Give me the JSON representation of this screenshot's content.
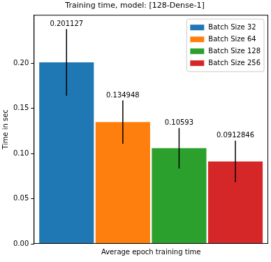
{
  "chart_data": {
    "type": "bar",
    "title": "Training time, model: [128-Dense-1]",
    "categories": [
      "Average epoch training time"
    ],
    "ylabel": "Time in sec",
    "series": [
      {
        "name": "Batch Size 32",
        "color": "#1f77b4",
        "values": [
          0.201127
        ],
        "errors": [
          0.037
        ]
      },
      {
        "name": "Batch Size 64",
        "color": "#ff7f0e",
        "values": [
          0.134948
        ],
        "errors": [
          0.024
        ]
      },
      {
        "name": "Batch Size 128",
        "color": "#2ca02c",
        "values": [
          0.10593
        ],
        "errors": [
          0.0225
        ]
      },
      {
        "name": "Batch Size 256",
        "color": "#d62728",
        "values": [
          0.0912846
        ],
        "errors": [
          0.023
        ]
      }
    ],
    "ylim": [
      0,
      0.2538
    ],
    "yticks": [
      {
        "value": 0,
        "label": "0.00"
      },
      {
        "value": 0.05,
        "label": "0.05"
      },
      {
        "value": 0.1,
        "label": "0.10"
      },
      {
        "value": 0.15,
        "label": "0.15"
      },
      {
        "value": 0.2,
        "label": "0.20"
      }
    ],
    "grid": false,
    "legend": "upper right",
    "data_labels": true
  }
}
